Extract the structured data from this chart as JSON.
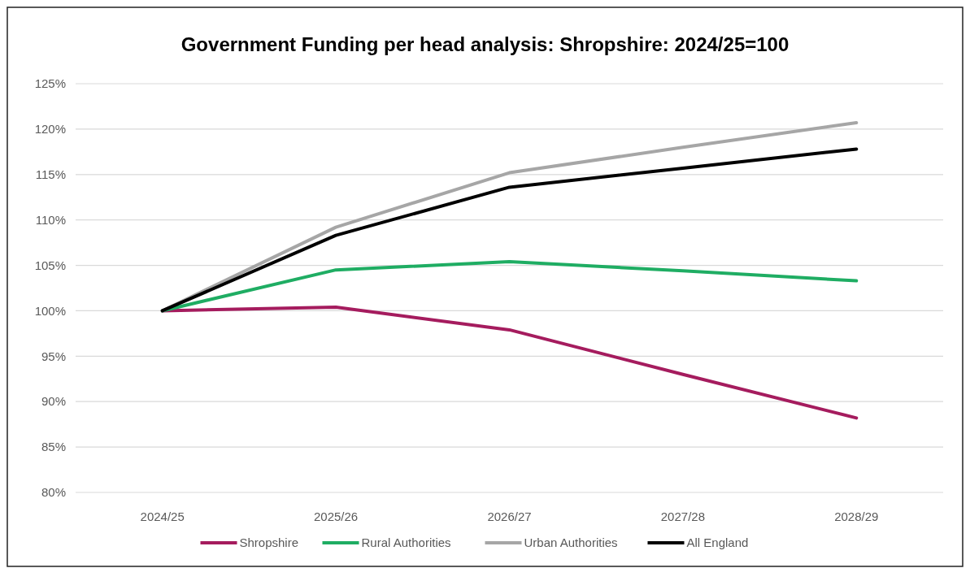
{
  "chart_data": {
    "type": "line",
    "title": "Government Funding per head analysis: Shropshire: 2024/25=100",
    "categories": [
      "2024/25",
      "2025/26",
      "2026/27",
      "2027/28",
      "2028/29"
    ],
    "series": [
      {
        "name": "Shropshire",
        "color": "#a51c5e",
        "values": [
          100,
          100.4,
          97.9,
          93.0,
          88.2
        ]
      },
      {
        "name": "Rural Authorities",
        "color": "#1fad63",
        "values": [
          100,
          104.5,
          105.4,
          104.4,
          103.3
        ]
      },
      {
        "name": "Urban Authorities",
        "color": "#a6a6a6",
        "values": [
          100,
          109.2,
          115.2,
          118.0,
          120.7
        ]
      },
      {
        "name": "All England",
        "color": "#000000",
        "values": [
          100,
          108.3,
          113.6,
          115.7,
          117.8
        ]
      }
    ],
    "ylim": [
      80,
      125
    ],
    "yticks": [
      {
        "value": 80,
        "label": "80%"
      },
      {
        "value": 85,
        "label": "85%"
      },
      {
        "value": 90,
        "label": "90%"
      },
      {
        "value": 95,
        "label": "95%"
      },
      {
        "value": 100,
        "label": "100%"
      },
      {
        "value": 105,
        "label": "105%"
      },
      {
        "value": 110,
        "label": "110%"
      },
      {
        "value": 115,
        "label": "115%"
      },
      {
        "value": 120,
        "label": "120%"
      },
      {
        "value": 125,
        "label": "125%"
      }
    ],
    "grid": "y",
    "legend": "bottom",
    "marker": "none",
    "line_style": "solid"
  }
}
